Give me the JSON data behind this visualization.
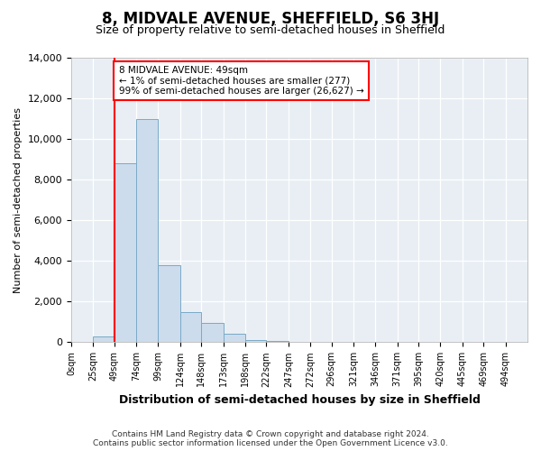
{
  "title": "8, MIDVALE AVENUE, SHEFFIELD, S6 3HJ",
  "subtitle": "Size of property relative to semi-detached houses in Sheffield",
  "xlabel": "Distribution of semi-detached houses by size in Sheffield",
  "ylabel": "Number of semi-detached properties",
  "footer_line1": "Contains HM Land Registry data © Crown copyright and database right 2024.",
  "footer_line2": "Contains public sector information licensed under the Open Government Licence v3.0.",
  "annotation_line1": "8 MIDVALE AVENUE: 49sqm",
  "annotation_line2": "← 1% of semi-detached houses are smaller (277)",
  "annotation_line3": "99% of semi-detached houses are larger (26,627) →",
  "property_size": 49,
  "bin_edges": [
    0,
    25,
    49,
    74,
    99,
    124,
    148,
    173,
    198,
    222,
    247,
    272,
    296,
    321,
    346,
    371,
    395,
    420,
    445,
    469,
    494,
    519
  ],
  "bar_heights": [
    0,
    300,
    8800,
    11000,
    3800,
    1500,
    950,
    400,
    100,
    60,
    20,
    10,
    0,
    0,
    0,
    0,
    0,
    0,
    0,
    0,
    0
  ],
  "bar_color": "#ccdcec",
  "bar_edgecolor": "#7aaac8",
  "redline_x": 49,
  "ylim": [
    0,
    14000
  ],
  "xlim": [
    0,
    519
  ],
  "tick_labels": [
    "0sqm",
    "25sqm",
    "49sqm",
    "74sqm",
    "99sqm",
    "124sqm",
    "148sqm",
    "173sqm",
    "198sqm",
    "222sqm",
    "247sqm",
    "272sqm",
    "296sqm",
    "321sqm",
    "346sqm",
    "371sqm",
    "395sqm",
    "420sqm",
    "445sqm",
    "469sqm",
    "494sqm"
  ],
  "tick_positions": [
    0,
    25,
    49,
    74,
    99,
    124,
    148,
    173,
    198,
    222,
    247,
    272,
    296,
    321,
    346,
    371,
    395,
    420,
    445,
    469,
    494
  ],
  "ytick_positions": [
    0,
    2000,
    4000,
    6000,
    8000,
    10000,
    12000,
    14000
  ],
  "background_color": "#ffffff",
  "plot_background": "#e8eef4",
  "grid_color": "#ffffff",
  "title_fontsize": 12,
  "subtitle_fontsize": 9,
  "ylabel_fontsize": 8,
  "xlabel_fontsize": 9,
  "footer_fontsize": 6.5,
  "tick_fontsize": 7,
  "ytick_fontsize": 8
}
